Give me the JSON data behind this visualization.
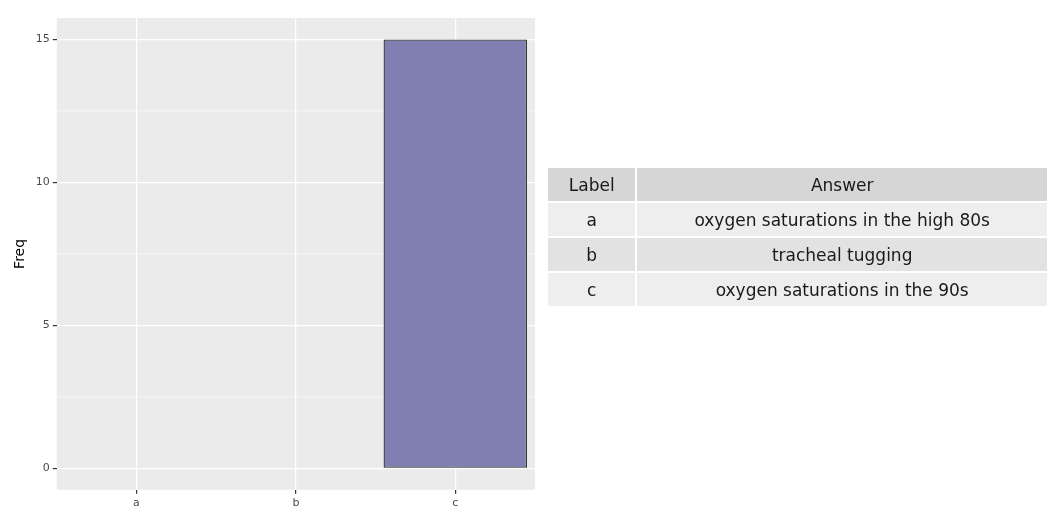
{
  "chart_data": [
    {
      "type": "bar",
      "ylabel": "Freq",
      "categories": [
        "a",
        "b",
        "c"
      ],
      "values": [
        0,
        0,
        15
      ],
      "color": "#7f7fb2",
      "ylim": [
        -0.75,
        15.75
      ],
      "yticks": [
        0,
        5,
        10,
        15
      ],
      "grid": true,
      "legend": false
    },
    {
      "type": "other",
      "annotations": [
        "Label",
        "Answer",
        "a",
        "oxygen saturations in the high 80s",
        "b",
        "tracheal tugging",
        "c",
        "oxygen saturations in the 90s"
      ]
    }
  ]
}
